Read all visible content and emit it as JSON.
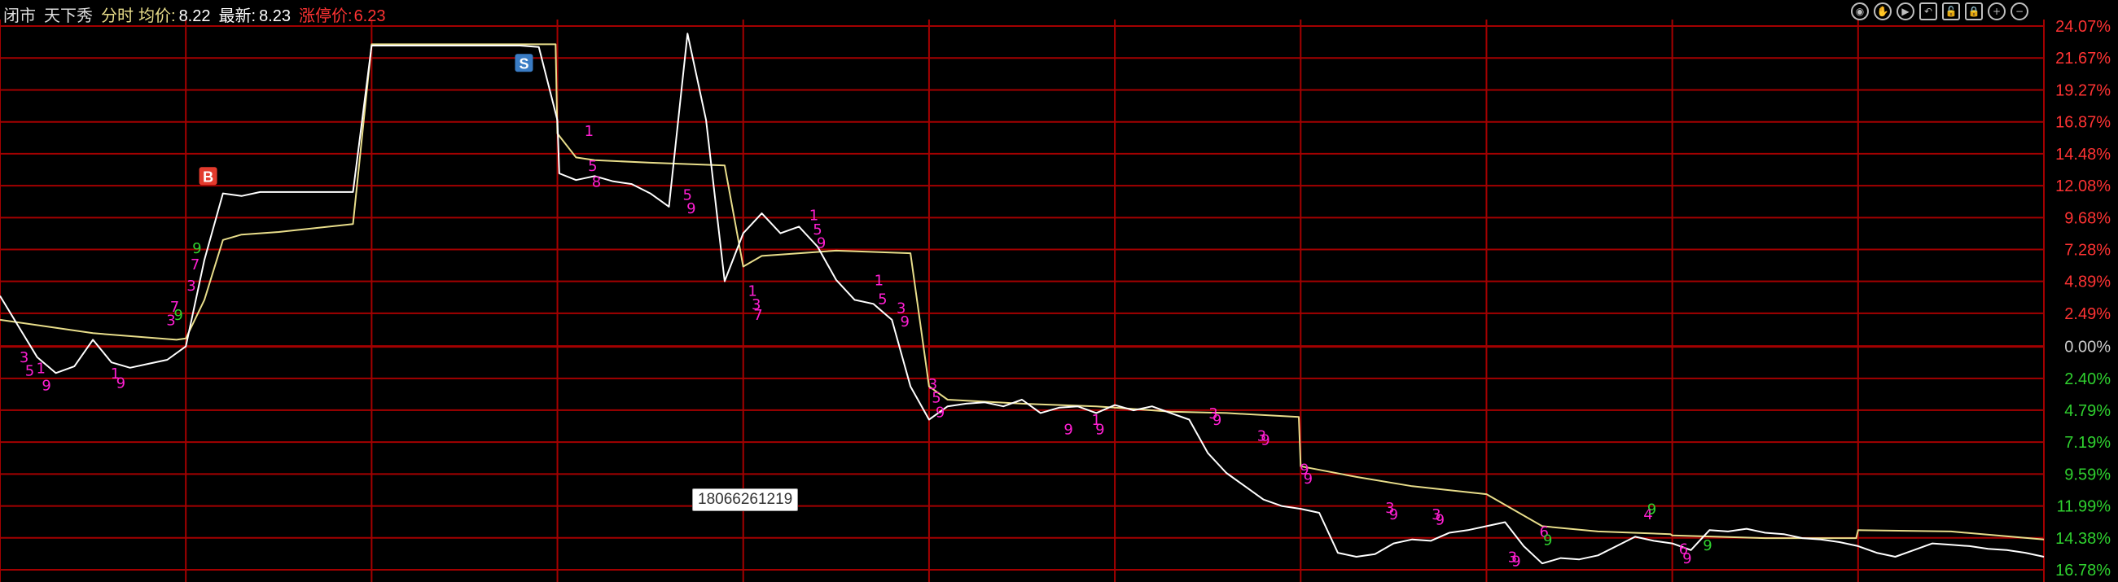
{
  "header": {
    "status": "闭市",
    "name": "天下秀",
    "mode": "分时",
    "avg_label": "均价:",
    "avg_value": "8.22",
    "last_label": "最新:",
    "last_value": "8.23",
    "limit_label": "涨停价:",
    "limit_value": "6.23"
  },
  "toolbar": {
    "icons": [
      "eye-icon",
      "hand-icon",
      "play-icon",
      "undo-icon",
      "lock-open-icon",
      "lock-icon",
      "zoom-in-icon",
      "zoom-out-icon"
    ]
  },
  "watermark": "18066261219",
  "colors": {
    "background": "#000000",
    "grid": "#a30000",
    "price_line": "#ffffff",
    "avg_line": "#e8dd8a",
    "up_text": "#ff3333",
    "down_text": "#2fd12f",
    "zero_text": "#cccccc",
    "markers": "#ff1fd2",
    "buy_marker": "#e33b2d",
    "sell_marker": "#3a7cc4"
  },
  "chart_data": {
    "type": "line",
    "title": "",
    "xlabel": "",
    "ylabel": "",
    "ylim": [
      -16.78,
      24.07
    ],
    "grid": true,
    "y_ticks": [
      {
        "label": "24.07%",
        "value": 24.07,
        "tone": "up"
      },
      {
        "label": "21.67%",
        "value": 21.67,
        "tone": "up"
      },
      {
        "label": "19.27%",
        "value": 19.27,
        "tone": "up"
      },
      {
        "label": "16.87%",
        "value": 16.87,
        "tone": "up"
      },
      {
        "label": "14.48%",
        "value": 14.48,
        "tone": "up"
      },
      {
        "label": "12.08%",
        "value": 12.08,
        "tone": "up"
      },
      {
        "label": "9.68%",
        "value": 9.68,
        "tone": "up"
      },
      {
        "label": "7.28%",
        "value": 7.28,
        "tone": "up"
      },
      {
        "label": "4.89%",
        "value": 4.89,
        "tone": "up"
      },
      {
        "label": "2.49%",
        "value": 2.49,
        "tone": "up"
      },
      {
        "label": "0.00%",
        "value": 0.0,
        "tone": "zero"
      },
      {
        "label": "2.40%",
        "value": -2.4,
        "tone": "down"
      },
      {
        "label": "4.79%",
        "value": -4.79,
        "tone": "down"
      },
      {
        "label": "7.19%",
        "value": -7.19,
        "tone": "down"
      },
      {
        "label": "9.59%",
        "value": -9.59,
        "tone": "down"
      },
      {
        "label": "11.99%",
        "value": -11.99,
        "tone": "down"
      },
      {
        "label": "14.38%",
        "value": -14.38,
        "tone": "down"
      },
      {
        "label": "16.78%",
        "value": -16.78,
        "tone": "down"
      }
    ],
    "days": 11,
    "series": [
      {
        "key": "price",
        "x": [
          0,
          0.1,
          0.2,
          0.3,
          0.4,
          0.5,
          0.6,
          0.7,
          0.8,
          0.9,
          1,
          1.1,
          1.2,
          1.3,
          1.4,
          1.5,
          1.6,
          1.7,
          1.8,
          1.9,
          2,
          2.01,
          2.1,
          2.2,
          2.3,
          2.4,
          2.5,
          2.6,
          2.7,
          2.8,
          2.9,
          3,
          3.01,
          3.1,
          3.2,
          3.3,
          3.4,
          3.5,
          3.6,
          3.7,
          3.8,
          3.9,
          4,
          4.1,
          4.2,
          4.3,
          4.4,
          4.5,
          4.6,
          4.7,
          4.8,
          4.9,
          5,
          5.1,
          5.2,
          5.3,
          5.4,
          5.5,
          5.6,
          5.7,
          5.8,
          5.9,
          6,
          6.1,
          6.2,
          6.3,
          6.4,
          6.5,
          6.6,
          6.7,
          6.8,
          6.9,
          7,
          7.1,
          7.2,
          7.3,
          7.4,
          7.5,
          7.6,
          7.7,
          7.8,
          7.9,
          8,
          8.1,
          8.2,
          8.3,
          8.4,
          8.5,
          8.6,
          8.7,
          8.8,
          8.9,
          9,
          9.1,
          9.2,
          9.3,
          9.4,
          9.5,
          9.6,
          9.7,
          9.8,
          9.9,
          10,
          10.1,
          10.2,
          10.3,
          10.4,
          10.5,
          10.6,
          10.7,
          10.8,
          10.9,
          11
        ],
        "y": [
          3.8,
          1.5,
          -0.8,
          -2.0,
          -1.5,
          0.5,
          -1.2,
          -1.6,
          -1.3,
          -1.0,
          0.0,
          6.5,
          11.5,
          11.3,
          11.6,
          11.6,
          11.6,
          11.6,
          11.6,
          11.6,
          22.6,
          22.6,
          22.6,
          22.6,
          22.6,
          22.6,
          22.6,
          22.6,
          22.6,
          22.6,
          22.5,
          17.0,
          13.0,
          12.5,
          12.8,
          12.4,
          12.2,
          11.5,
          10.5,
          23.5,
          17.0,
          4.9,
          8.5,
          10.0,
          8.5,
          9.0,
          7.5,
          5.0,
          3.5,
          3.2,
          2.0,
          -3.0,
          -5.5,
          -4.5,
          -4.3,
          -4.2,
          -4.5,
          -4.0,
          -5.0,
          -4.6,
          -4.5,
          -5.0,
          -4.4,
          -4.8,
          -4.5,
          -5.0,
          -5.5,
          -8.0,
          -9.5,
          -10.5,
          -11.5,
          -12.0,
          -12.2,
          -12.5,
          -15.5,
          -15.8,
          -15.6,
          -14.8,
          -14.5,
          -14.6,
          -14.0,
          -13.8,
          -13.5,
          -13.2,
          -15.0,
          -16.3,
          -15.9,
          -16.0,
          -15.7,
          -15.0,
          -14.3,
          -14.6,
          -14.8,
          -15.3,
          -13.8,
          -13.9,
          -13.7,
          -14.0,
          -14.1,
          -14.4,
          -14.5,
          -14.7,
          -15.0,
          -15.5,
          -15.8,
          -15.3,
          -14.8,
          -14.9,
          -15.0,
          -15.2,
          -15.3,
          -15.5,
          -15.8
        ]
      },
      {
        "key": "average",
        "x": [
          0,
          0.5,
          0.95,
          1,
          1.1,
          1.2,
          1.3,
          1.5,
          1.9,
          2,
          2.5,
          2.99,
          3,
          3.1,
          3.2,
          3.5,
          3.9,
          4,
          4.1,
          4.5,
          4.9,
          5,
          5.1,
          5.5,
          5.9,
          6,
          6.3,
          6.6,
          6.99,
          7,
          7.3,
          7.6,
          8,
          8.3,
          8.6,
          8.99,
          9,
          9.5,
          9.99,
          10,
          10.5,
          11
        ],
        "y": [
          2.0,
          1.0,
          0.5,
          0.6,
          3.5,
          8.0,
          8.4,
          8.6,
          9.2,
          22.7,
          22.7,
          22.7,
          16.0,
          14.2,
          14.0,
          13.8,
          13.6,
          6.0,
          6.8,
          7.2,
          7.0,
          -3.0,
          -4.0,
          -4.3,
          -4.5,
          -4.6,
          -4.9,
          -5.0,
          -5.3,
          -9.0,
          -9.8,
          -10.5,
          -11.1,
          -13.5,
          -13.9,
          -14.1,
          -14.2,
          -14.4,
          -14.4,
          -13.8,
          -13.9,
          -14.5
        ]
      }
    ],
    "annotations": [
      {
        "x": 0.13,
        "y": -1.2,
        "text": "3",
        "color": "pink"
      },
      {
        "x": 0.16,
        "y": -2.2,
        "text": "5",
        "color": "pink"
      },
      {
        "x": 0.22,
        "y": -2.0,
        "text": "1",
        "color": "pink"
      },
      {
        "x": 0.25,
        "y": -3.3,
        "text": "9",
        "color": "pink"
      },
      {
        "x": 0.62,
        "y": -2.4,
        "text": "1",
        "color": "pink"
      },
      {
        "x": 0.65,
        "y": -3.1,
        "text": "9",
        "color": "pink"
      },
      {
        "x": 0.92,
        "y": 1.6,
        "text": "3",
        "color": "pink"
      },
      {
        "x": 0.94,
        "y": 2.6,
        "text": "7",
        "color": "pink"
      },
      {
        "x": 0.96,
        "y": 2.0,
        "text": "9",
        "color": "green"
      },
      {
        "x": 1.03,
        "y": 4.2,
        "text": "3",
        "color": "pink"
      },
      {
        "x": 1.05,
        "y": 5.8,
        "text": "7",
        "color": "pink"
      },
      {
        "x": 1.06,
        "y": 7.0,
        "text": "9",
        "color": "green"
      },
      {
        "x": 3.17,
        "y": 15.8,
        "text": "1",
        "color": "pink"
      },
      {
        "x": 3.19,
        "y": 13.2,
        "text": "5",
        "color": "pink"
      },
      {
        "x": 3.21,
        "y": 12.0,
        "text": "8",
        "color": "pink"
      },
      {
        "x": 3.7,
        "y": 11.0,
        "text": "5",
        "color": "pink"
      },
      {
        "x": 3.72,
        "y": 10.0,
        "text": "9",
        "color": "pink"
      },
      {
        "x": 4.05,
        "y": 3.8,
        "text": "1",
        "color": "pink"
      },
      {
        "x": 4.07,
        "y": 2.8,
        "text": "3",
        "color": "pink"
      },
      {
        "x": 4.08,
        "y": 2.0,
        "text": "7",
        "color": "pink"
      },
      {
        "x": 4.38,
        "y": 9.5,
        "text": "1",
        "color": "pink"
      },
      {
        "x": 4.4,
        "y": 8.4,
        "text": "5",
        "color": "pink"
      },
      {
        "x": 4.42,
        "y": 7.4,
        "text": "9",
        "color": "pink"
      },
      {
        "x": 4.73,
        "y": 4.6,
        "text": "1",
        "color": "pink"
      },
      {
        "x": 4.75,
        "y": 3.2,
        "text": "5",
        "color": "pink"
      },
      {
        "x": 4.85,
        "y": 2.5,
        "text": "3",
        "color": "pink"
      },
      {
        "x": 4.87,
        "y": 1.5,
        "text": "9",
        "color": "pink"
      },
      {
        "x": 5.02,
        "y": -3.2,
        "text": "3",
        "color": "pink"
      },
      {
        "x": 5.04,
        "y": -4.2,
        "text": "5",
        "color": "pink"
      },
      {
        "x": 5.06,
        "y": -5.3,
        "text": "9",
        "color": "pink"
      },
      {
        "x": 5.75,
        "y": -6.6,
        "text": "9",
        "color": "pink"
      },
      {
        "x": 5.9,
        "y": -5.9,
        "text": "1",
        "color": "pink"
      },
      {
        "x": 5.92,
        "y": -6.6,
        "text": "9",
        "color": "pink"
      },
      {
        "x": 6.53,
        "y": -5.4,
        "text": "3",
        "color": "pink"
      },
      {
        "x": 6.55,
        "y": -5.9,
        "text": "9",
        "color": "pink"
      },
      {
        "x": 6.79,
        "y": -7.1,
        "text": "3",
        "color": "pink"
      },
      {
        "x": 6.81,
        "y": -7.4,
        "text": "9",
        "color": "pink"
      },
      {
        "x": 7.02,
        "y": -9.6,
        "text": "9",
        "color": "pink"
      },
      {
        "x": 7.04,
        "y": -10.3,
        "text": "9",
        "color": "pink"
      },
      {
        "x": 7.48,
        "y": -12.5,
        "text": "3",
        "color": "pink"
      },
      {
        "x": 7.5,
        "y": -13.0,
        "text": "9",
        "color": "pink"
      },
      {
        "x": 7.73,
        "y": -13.0,
        "text": "3",
        "color": "pink"
      },
      {
        "x": 7.75,
        "y": -13.4,
        "text": "9",
        "color": "pink"
      },
      {
        "x": 8.14,
        "y": -16.2,
        "text": "3",
        "color": "pink"
      },
      {
        "x": 8.16,
        "y": -16.5,
        "text": "9",
        "color": "pink"
      },
      {
        "x": 8.31,
        "y": -14.3,
        "text": "6",
        "color": "pink"
      },
      {
        "x": 8.33,
        "y": -14.9,
        "text": "9",
        "color": "green"
      },
      {
        "x": 8.87,
        "y": -13.0,
        "text": "4",
        "color": "pink"
      },
      {
        "x": 8.89,
        "y": -12.6,
        "text": "9",
        "color": "green"
      },
      {
        "x": 9.06,
        "y": -15.6,
        "text": "6",
        "color": "pink"
      },
      {
        "x": 9.08,
        "y": -16.3,
        "text": "9",
        "color": "pink"
      },
      {
        "x": 9.19,
        "y": -15.3,
        "text": "9",
        "color": "green"
      }
    ],
    "trade_markers": [
      {
        "x": 1.12,
        "y": 12.8,
        "label": "B"
      },
      {
        "x": 2.82,
        "y": 21.3,
        "label": "S"
      }
    ]
  }
}
